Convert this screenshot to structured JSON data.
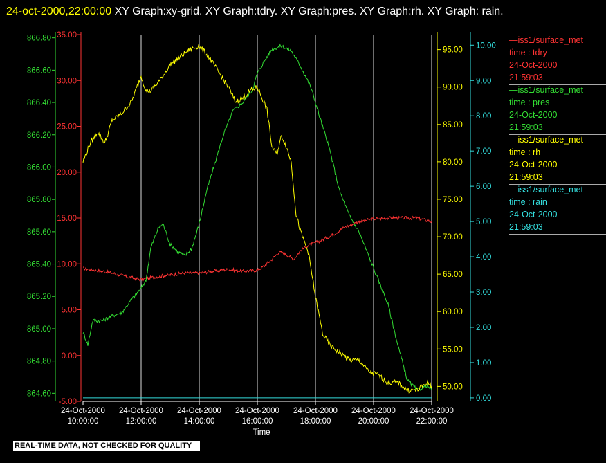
{
  "title": {
    "timestamp": "24-oct-2000,22:00:00",
    "rest": "  XY Graph:xy-grid.  XY Graph:tdry.  XY Graph:pres.  XY Graph:rh.  XY Graph: rain."
  },
  "footer": "REAL-TIME DATA, NOT CHECKED FOR QUALITY",
  "colors": {
    "tdry": "#ff3333",
    "pres": "#33dd33",
    "rh": "#ffff00",
    "rain": "#33dddd",
    "grid": "#dddddd"
  },
  "legend": [
    {
      "line1": "—iss1/surface_met",
      "line2": "time : tdry",
      "line3": "24-Oct-2000",
      "line4": "21:59:03",
      "color": "#ff3333"
    },
    {
      "line1": "—iss1/surface_met",
      "line2": "time : pres",
      "line3": "24-Oct-2000",
      "line4": "21:59:03",
      "color": "#33dd33"
    },
    {
      "line1": "—iss1/surface_met",
      "line2": "time : rh",
      "line3": "24-Oct-2000",
      "line4": "21:59:03",
      "color": "#ffff00"
    },
    {
      "line1": "—iss1/surface_met",
      "line2": "time : rain",
      "line3": "24-Oct-2000",
      "line4": "21:59:03",
      "color": "#33dddd"
    }
  ],
  "chart_data": {
    "type": "line",
    "xlabel": "Time",
    "x_ticks": [
      {
        "date": "24-Oct-2000",
        "time": "10:00:00"
      },
      {
        "date": "24-Oct-2000",
        "time": "12:00:00"
      },
      {
        "date": "24-Oct-2000",
        "time": "14:00:00"
      },
      {
        "date": "24-Oct-2000",
        "time": "16:00:00"
      },
      {
        "date": "24-Oct-2000",
        "time": "18:00:00"
      },
      {
        "date": "24-Oct-2000",
        "time": "20:00:00"
      },
      {
        "date": "24-Oct-2000",
        "time": "22:00:00"
      }
    ],
    "xlim": [
      "10:00",
      "22:00"
    ],
    "grid": "vertical",
    "axes": {
      "pres": {
        "ylim": [
          864.55,
          866.82
        ],
        "ticks": [
          "864.60",
          "864.80",
          "865.00",
          "865.20",
          "865.40",
          "865.60",
          "865.80",
          "866.00",
          "866.20",
          "866.40",
          "866.60",
          "866.80"
        ],
        "color": "#33dd33"
      },
      "tdry": {
        "ylim": [
          -5,
          35
        ],
        "ticks": [
          "-5.00",
          "0.00",
          "5.00",
          "10.00",
          "15.00",
          "20.00",
          "25.00",
          "30.00",
          "35.00"
        ],
        "color": "#ff3333"
      },
      "rh": {
        "ylim": [
          48,
          97
        ],
        "ticks": [
          "50.00",
          "55.00",
          "60.00",
          "65.00",
          "70.00",
          "75.00",
          "80.00",
          "85.00",
          "90.00",
          "95.00"
        ],
        "color": "#ffff00"
      },
      "rain": {
        "ylim": [
          -0.1,
          10.3
        ],
        "ticks": [
          "0.00",
          "1.00",
          "2.00",
          "3.00",
          "4.00",
          "5.00",
          "6.00",
          "7.00",
          "8.00",
          "9.00",
          "10.00"
        ],
        "color": "#33dddd"
      }
    },
    "series": [
      {
        "name": "tdry",
        "axis": "tdry",
        "color": "#ff3333",
        "points": [
          [
            "10:00",
            9.5
          ],
          [
            "10:30",
            9.3
          ],
          [
            "11:00",
            9.0
          ],
          [
            "11:30",
            8.6
          ],
          [
            "12:00",
            8.3
          ],
          [
            "12:30",
            8.6
          ],
          [
            "13:00",
            8.8
          ],
          [
            "13:30",
            9.0
          ],
          [
            "14:00",
            9.0
          ],
          [
            "14:30",
            9.2
          ],
          [
            "15:00",
            9.4
          ],
          [
            "15:30",
            9.2
          ],
          [
            "16:00",
            9.3
          ],
          [
            "16:15",
            9.8
          ],
          [
            "16:30",
            10.5
          ],
          [
            "16:45",
            11.3
          ],
          [
            "17:00",
            11.0
          ],
          [
            "17:15",
            10.5
          ],
          [
            "17:30",
            11.5
          ],
          [
            "17:45",
            12.0
          ],
          [
            "18:00",
            12.3
          ],
          [
            "18:30",
            13.0
          ],
          [
            "19:00",
            14.0
          ],
          [
            "19:30",
            14.6
          ],
          [
            "20:00",
            14.9
          ],
          [
            "20:30",
            15.0
          ],
          [
            "21:00",
            15.0
          ],
          [
            "21:30",
            15.0
          ],
          [
            "22:00",
            14.6
          ]
        ]
      },
      {
        "name": "pres",
        "axis": "pres",
        "color": "#33dd33",
        "points": [
          [
            "10:00",
            864.98
          ],
          [
            "10:10",
            864.9
          ],
          [
            "10:20",
            865.05
          ],
          [
            "10:40",
            865.05
          ],
          [
            "11:00",
            865.08
          ],
          [
            "11:20",
            865.1
          ],
          [
            "11:40",
            865.18
          ],
          [
            "12:00",
            865.25
          ],
          [
            "12:10",
            865.3
          ],
          [
            "12:20",
            865.5
          ],
          [
            "12:35",
            865.62
          ],
          [
            "12:45",
            865.65
          ],
          [
            "13:00",
            865.52
          ],
          [
            "13:15",
            865.48
          ],
          [
            "13:30",
            865.45
          ],
          [
            "13:45",
            865.5
          ],
          [
            "14:00",
            865.65
          ],
          [
            "14:15",
            865.85
          ],
          [
            "14:30",
            866.0
          ],
          [
            "14:50",
            866.2
          ],
          [
            "15:10",
            866.35
          ],
          [
            "15:30",
            866.4
          ],
          [
            "15:50",
            866.48
          ],
          [
            "16:00",
            866.58
          ],
          [
            "16:15",
            866.66
          ],
          [
            "16:30",
            866.73
          ],
          [
            "16:50",
            866.75
          ],
          [
            "17:10",
            866.72
          ],
          [
            "17:30",
            866.62
          ],
          [
            "17:50",
            866.5
          ],
          [
            "18:10",
            866.3
          ],
          [
            "18:30",
            866.1
          ],
          [
            "18:50",
            865.85
          ],
          [
            "19:10",
            865.7
          ],
          [
            "19:30",
            865.6
          ],
          [
            "19:50",
            865.45
          ],
          [
            "20:10",
            865.3
          ],
          [
            "20:30",
            865.15
          ],
          [
            "20:50",
            864.9
          ],
          [
            "21:10",
            864.68
          ],
          [
            "21:30",
            864.62
          ],
          [
            "21:50",
            864.65
          ],
          [
            "22:00",
            864.62
          ]
        ]
      },
      {
        "name": "rh",
        "axis": "rh",
        "color": "#ffff00",
        "points": [
          [
            "10:00",
            80.0
          ],
          [
            "10:15",
            82.5
          ],
          [
            "10:30",
            84.0
          ],
          [
            "10:45",
            82.5
          ],
          [
            "11:00",
            85.5
          ],
          [
            "11:20",
            86.5
          ],
          [
            "11:40",
            88.0
          ],
          [
            "12:00",
            91.5
          ],
          [
            "12:10",
            89.5
          ],
          [
            "12:20",
            89.5
          ],
          [
            "12:40",
            91.0
          ],
          [
            "13:00",
            93.0
          ],
          [
            "13:20",
            94.0
          ],
          [
            "13:40",
            95.0
          ],
          [
            "14:00",
            95.5
          ],
          [
            "14:20",
            94.0
          ],
          [
            "14:40",
            92.0
          ],
          [
            "15:00",
            90.0
          ],
          [
            "15:15",
            88.0
          ],
          [
            "15:30",
            88.5
          ],
          [
            "15:45",
            89.5
          ],
          [
            "16:00",
            90.0
          ],
          [
            "16:10",
            88.5
          ],
          [
            "16:20",
            87.0
          ],
          [
            "16:30",
            82.0
          ],
          [
            "16:40",
            81.0
          ],
          [
            "16:50",
            83.5
          ],
          [
            "17:00",
            82.0
          ],
          [
            "17:10",
            80.0
          ],
          [
            "17:20",
            73.0
          ],
          [
            "17:30",
            70.5
          ],
          [
            "17:45",
            68.0
          ],
          [
            "18:00",
            62.0
          ],
          [
            "18:15",
            57.0
          ],
          [
            "18:30",
            55.5
          ],
          [
            "18:50",
            54.5
          ],
          [
            "19:10",
            53.5
          ],
          [
            "19:30",
            53.5
          ],
          [
            "19:50",
            52.0
          ],
          [
            "20:10",
            51.5
          ],
          [
            "20:30",
            50.5
          ],
          [
            "20:50",
            50.5
          ],
          [
            "21:10",
            49.5
          ],
          [
            "21:30",
            49.5
          ],
          [
            "21:50",
            50.5
          ],
          [
            "22:00",
            50.0
          ]
        ]
      },
      {
        "name": "rain",
        "axis": "rain",
        "color": "#33dddd",
        "points": [
          [
            "10:00",
            0.0
          ],
          [
            "22:00",
            0.0
          ]
        ]
      }
    ]
  }
}
